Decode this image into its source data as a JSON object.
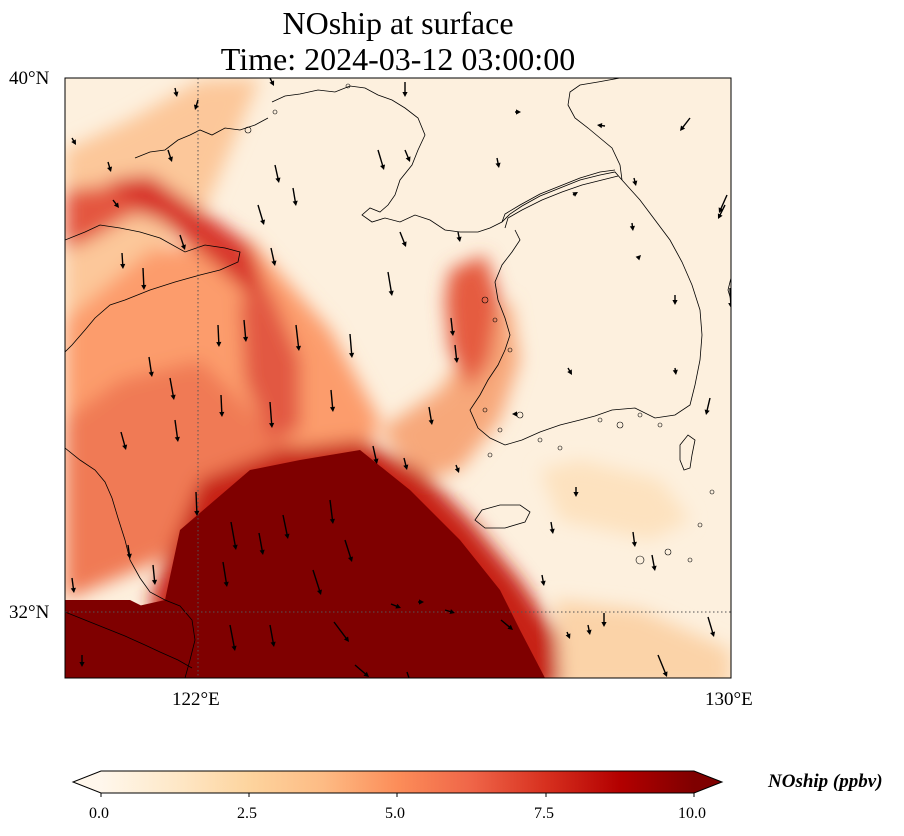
{
  "title": {
    "line1": "NOship at surface",
    "line2": "Time: 2024-03-12 03:00:00"
  },
  "axes": {
    "lat_ticks": [
      "40°N",
      "32°N"
    ],
    "lon_ticks": [
      "122°E",
      "130°E"
    ]
  },
  "colorbar": {
    "label": "NOship (ppbv)",
    "ticks": [
      "0.0",
      "2.5",
      "5.0",
      "7.5",
      "10.0"
    ],
    "colormap": "OrRd",
    "colors": [
      "#fff7ec",
      "#fee8c8",
      "#fdd49e",
      "#fdbb84",
      "#fc8d59",
      "#ef6548",
      "#d7301f",
      "#b30000",
      "#7f0000"
    ]
  }
}
